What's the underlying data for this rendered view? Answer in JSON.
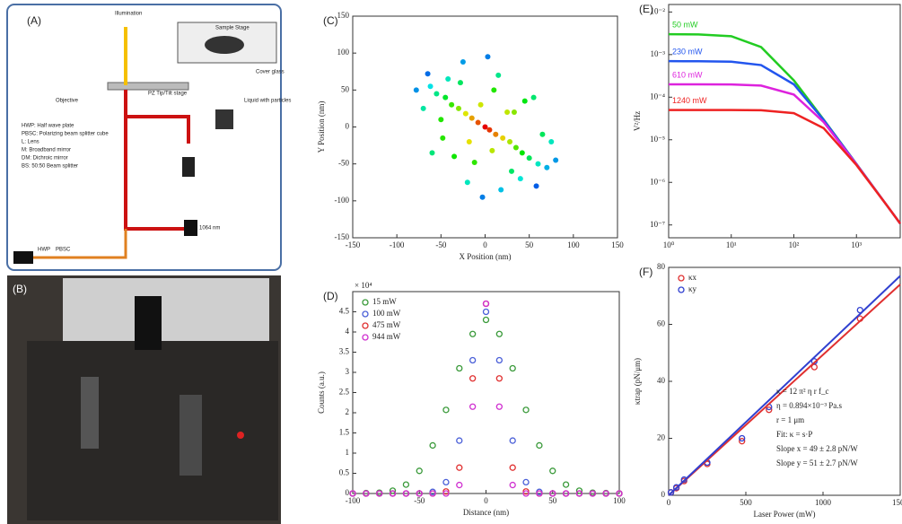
{
  "panel_a": {
    "title": "(A)",
    "labels": [
      "Illumination",
      "Sample Stage",
      "Cover glass",
      "Liquid with particles",
      "Objective",
      "PZ Tip/Tilt stage",
      "1064 nm",
      "HWP",
      "PBSC",
      "HWP: Half wave plate",
      "PBSC: Polarizing beam splitter cube",
      "L: Lens",
      "M: Broadband mirror",
      "DM: Dichroic mirror",
      "BS: 50:50 Beam splitter"
    ]
  },
  "panel_b": {
    "title": "(B)"
  },
  "chart_data": [
    {
      "type": "scatter",
      "title": "(C)",
      "colormap": "jet",
      "x_label": "X Position (nm)",
      "y_label": "Y Position (nm)",
      "xlim": [
        -150,
        150
      ],
      "ylim": [
        -150,
        150
      ],
      "xticks": [
        -150,
        -100,
        -50,
        0,
        50,
        100,
        150
      ],
      "yticks": [
        -150,
        -100,
        -50,
        0,
        50,
        100,
        150
      ],
      "x": [
        0,
        5,
        -8,
        12,
        -15,
        20,
        -22,
        28,
        -30,
        35,
        -38,
        42,
        -45,
        50,
        -55,
        60,
        -62,
        70,
        -5,
        8,
        -18,
        25,
        -35,
        45,
        -50,
        65,
        10,
        -12,
        30,
        -28,
        55,
        -60,
        75,
        -70,
        15,
        -20,
        40,
        -42,
        80,
        -78,
        3,
        -3,
        18,
        -25,
        33,
        -48,
        58,
        -65
      ],
      "values": [
        0,
        -4,
        6,
        -10,
        12,
        -15,
        18,
        -20,
        25,
        -28,
        30,
        -35,
        40,
        -42,
        45,
        -50,
        55,
        -55,
        30,
        -32,
        -20,
        20,
        -40,
        35,
        10,
        -10,
        50,
        -48,
        -60,
        60,
        40,
        -35,
        -20,
        25,
        70,
        -75,
        -70,
        65,
        -45,
        50,
        95,
        -95,
        -85,
        88,
        20,
        -15,
        -80,
        72
      ]
    },
    {
      "type": "scatter",
      "title": "(D)",
      "x_label": "Distance (nm)",
      "y_label": "Counts (a.u.)",
      "y_unit_label": "× 10⁴",
      "legend": "upper left",
      "xlim": [
        -100,
        100
      ],
      "ylim": [
        0,
        5
      ],
      "xticks": [
        -100,
        -50,
        0,
        50,
        100
      ],
      "yticks": [
        0,
        0.5,
        1,
        1.5,
        2,
        2.5,
        3,
        3.5,
        4,
        4.5
      ],
      "x": [
        -100,
        -90,
        -80,
        -70,
        -60,
        -50,
        -40,
        -30,
        -20,
        -10,
        0,
        10,
        20,
        30,
        40,
        50,
        60,
        70,
        80,
        90,
        100
      ],
      "series": [
        {
          "name": "15 mW",
          "color": "#3a9a3a",
          "values": [
            0,
            0.01,
            0.02,
            0.07,
            0.22,
            0.56,
            1.19,
            2.07,
            3.1,
            3.95,
            4.3,
            3.95,
            3.1,
            2.07,
            1.19,
            0.56,
            0.22,
            0.07,
            0.02,
            0.01,
            0
          ]
        },
        {
          "name": "100 mW",
          "color": "#4a5fd8",
          "values": [
            0,
            0,
            0,
            0,
            0,
            0,
            0.04,
            0.28,
            1.31,
            3.3,
            4.5,
            3.3,
            1.31,
            0.28,
            0.04,
            0,
            0,
            0,
            0,
            0,
            0
          ]
        },
        {
          "name": "475 mW",
          "color": "#e03030",
          "values": [
            0,
            0,
            0,
            0,
            0,
            0,
            0,
            0.05,
            0.64,
            2.85,
            4.7,
            2.85,
            0.64,
            0.05,
            0,
            0,
            0,
            0,
            0,
            0,
            0
          ]
        },
        {
          "name": "944 mW",
          "color": "#d030d0",
          "values": [
            0,
            0,
            0,
            0,
            0,
            0,
            0,
            0,
            0.21,
            2.15,
            4.7,
            2.15,
            0.21,
            0,
            0,
            0,
            0,
            0,
            0,
            0,
            0
          ]
        }
      ]
    },
    {
      "type": "line",
      "title": "(E)",
      "y_label": "V²/Hz",
      "xlog": true,
      "ylog": true,
      "xlim": [
        1,
        5000
      ],
      "ylim": [
        5e-08,
        0.015
      ],
      "xticks": [
        {
          "value": 1,
          "label": "10⁰"
        },
        {
          "value": 10,
          "label": "10¹"
        },
        {
          "value": 100,
          "label": "10²"
        },
        {
          "value": 1000,
          "label": "10³"
        }
      ],
      "yticks": [
        {
          "value": 1e-07,
          "label": "10⁻⁷"
        },
        {
          "value": 1e-06,
          "label": "10⁻⁶"
        },
        {
          "value": 1e-05,
          "label": "10⁻⁵"
        },
        {
          "value": 0.0001,
          "label": "10⁻⁴"
        },
        {
          "value": 0.001,
          "label": "10⁻³"
        },
        {
          "value": 0.01,
          "label": "10⁻²"
        }
      ],
      "x": [
        1,
        3,
        10,
        30,
        100,
        300,
        1000,
        3000,
        5000
      ],
      "series": [
        {
          "name": "50 mW",
          "color": "#22cc22",
          "values": [
            0.003,
            0.00297,
            0.0027,
            0.0015,
            0.000248,
            2.97e-05,
            2.7e-06,
            3e-07,
            1.08e-07
          ]
        },
        {
          "name": "230 mW",
          "color": "#2255ee",
          "values": [
            0.0007,
            0.000698,
            0.000682,
            0.000567,
            0.0002,
            2.9e-05,
            2.69e-06,
            3e-07,
            1.08e-07
          ]
        },
        {
          "name": "610 mW",
          "color": "#dd22dd",
          "values": [
            0.0002,
            0.0002,
            0.000199,
            0.000187,
            0.000115,
            2.6e-05,
            2.65e-06,
            3e-07,
            1.08e-07
          ]
        },
        {
          "name": "1240 mW",
          "color": "#ee2222",
          "values": [
            5e-05,
            5e-05,
            4.99e-05,
            4.92e-05,
            4.22e-05,
            1.87e-05,
            2.55e-06,
            2.99e-07,
            1.08e-07
          ]
        }
      ]
    },
    {
      "type": "scatter",
      "title": "(F)",
      "x_label": "Laser Power (mW)",
      "y_label": "κtrap (pN/μm)",
      "legend": "upper left",
      "xlim": [
        0,
        1500
      ],
      "ylim": [
        0,
        80
      ],
      "xticks": [
        0,
        500,
        1000,
        1500
      ],
      "yticks": [
        0,
        20,
        40,
        60,
        80
      ],
      "annotations": [
        "κ = 12 π² η r f_c",
        "η = 0.894×10⁻³ Pa.s",
        "r = 1 μm",
        "Fit: κ = s·P",
        "Slope x = 49 ± 2.8 pN/W",
        "Slope y = 51 ± 2.7 pN/W"
      ],
      "series": [
        {
          "name": "κx",
          "color": "#e03030",
          "x": [
            15,
            50,
            100,
            250,
            475,
            650,
            944,
            1240
          ],
          "values": [
            1,
            2.5,
            5,
            11,
            19,
            30,
            45,
            62
          ]
        },
        {
          "name": "κy",
          "color": "#3040d0",
          "x": [
            15,
            50,
            100,
            250,
            475,
            650,
            944,
            1240
          ],
          "values": [
            1,
            2.8,
            5.5,
            11.5,
            20,
            31,
            47,
            65
          ]
        },
        {
          "color": "#e03030",
          "mode": "line",
          "x": [
            0,
            1500
          ],
          "values": [
            0,
            74
          ]
        },
        {
          "color": "#3040d0",
          "mode": "line",
          "x": [
            0,
            1500
          ],
          "values": [
            0,
            77
          ]
        }
      ]
    }
  ]
}
